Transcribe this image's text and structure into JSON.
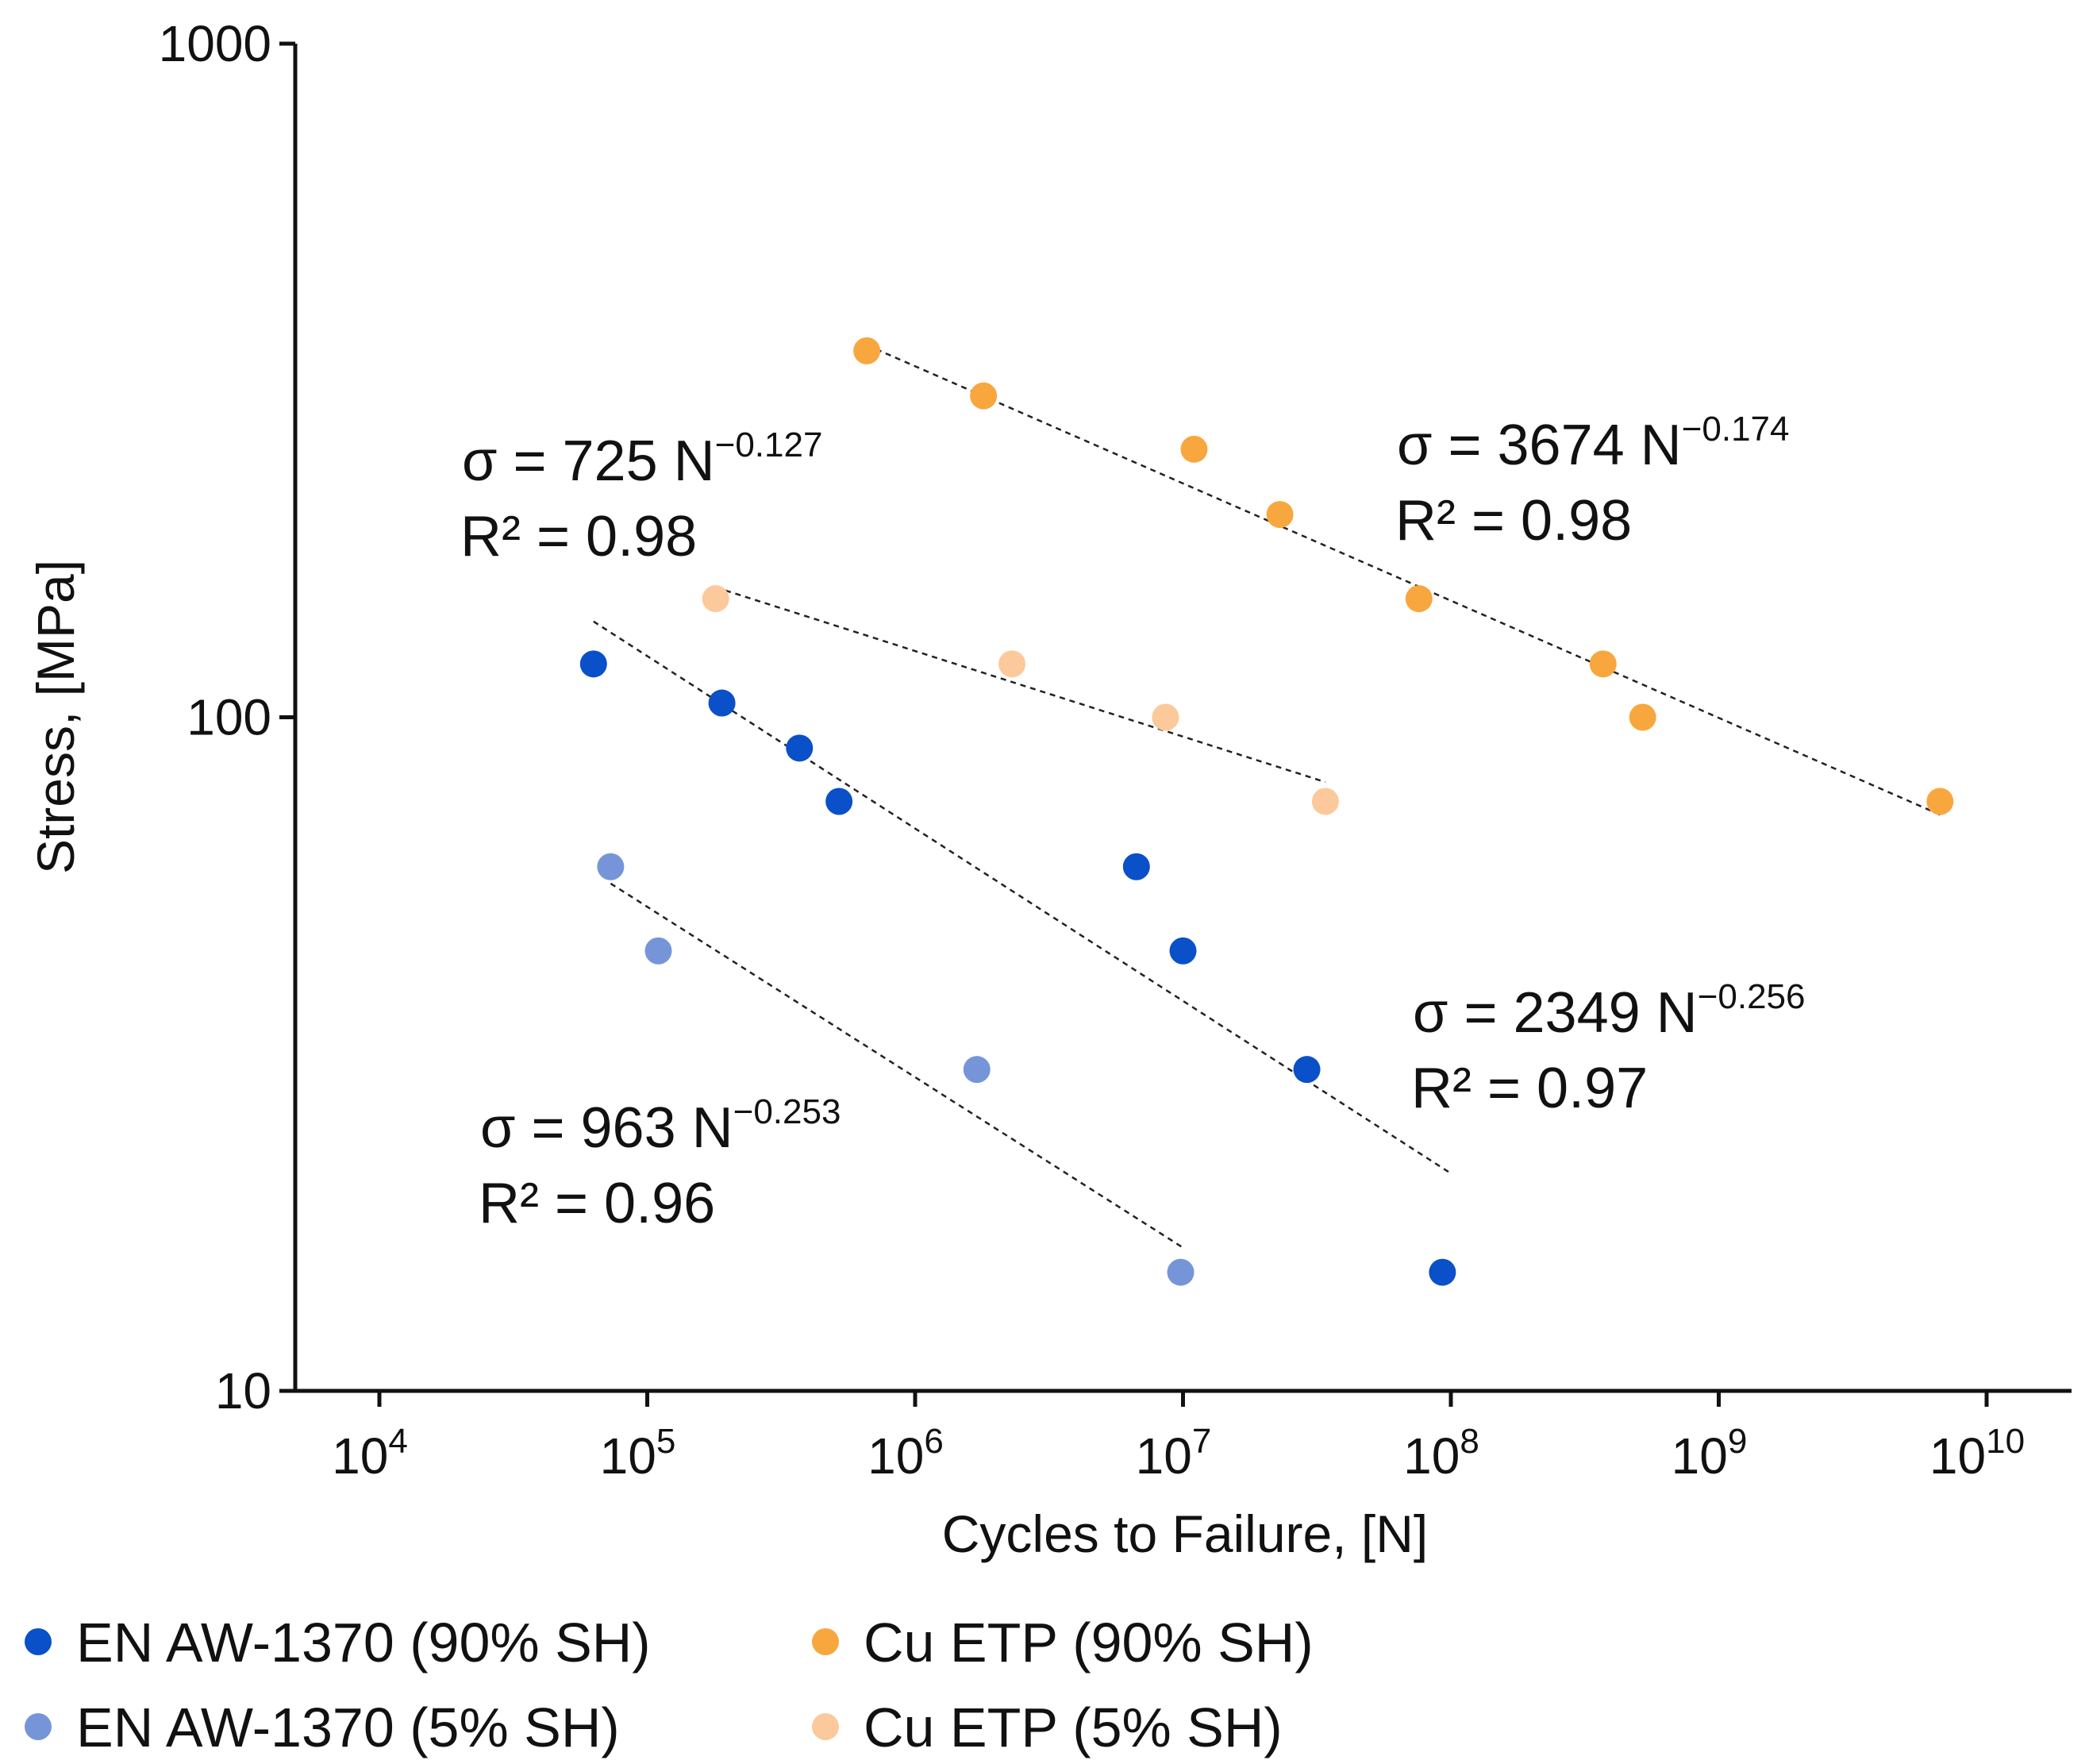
{
  "chart_data": {
    "type": "scatter",
    "xscale": "log",
    "yscale": "log",
    "xlabel": "Cycles to Failure, [N]",
    "ylabel": "Stress, [MPa]",
    "xlim": [
      5000,
      15000000000
    ],
    "ylim": [
      10,
      1000
    ],
    "x_ticks": [
      {
        "base": "10",
        "exp": "4"
      },
      {
        "base": "10",
        "exp": "5"
      },
      {
        "base": "10",
        "exp": "6"
      },
      {
        "base": "10",
        "exp": "7"
      },
      {
        "base": "10",
        "exp": "8"
      },
      {
        "base": "10",
        "exp": "9"
      },
      {
        "base": "10",
        "exp": "10"
      }
    ],
    "x_tick_values": [
      10000,
      100000,
      1000000,
      10000000,
      100000000,
      1000000000,
      10000000000
    ],
    "y_ticks": [
      "10",
      "100",
      "1000"
    ],
    "y_tick_values": [
      10,
      100,
      1000
    ],
    "series": [
      {
        "name": "EN AW-1370 (90% SH)",
        "color": "#0a50c8",
        "points": [
          [
            63000,
            120
          ],
          [
            190000,
            105
          ],
          [
            370000,
            90
          ],
          [
            520000,
            75
          ],
          [
            6700000,
            60
          ],
          [
            10000000,
            45
          ],
          [
            29000000,
            30
          ],
          [
            93000000,
            15
          ]
        ],
        "fit": {
          "label": "σ = 2349 N",
          "exponent": "−0.256",
          "r2": "R² = 0.97",
          "x_range": [
            63000,
            100000000
          ],
          "coef": 2349,
          "b": -0.256
        }
      },
      {
        "name": "EN AW-1370 (5% SH)",
        "color": "#7695d9",
        "points": [
          [
            73000,
            60
          ],
          [
            110000,
            45
          ],
          [
            1700000,
            30
          ],
          [
            9800000,
            15
          ]
        ],
        "fit": {
          "label": "σ = 963 N",
          "exponent": "−0.253",
          "r2": "R² = 0.96",
          "x_range": [
            73000,
            10000000
          ],
          "coef": 963,
          "b": -0.253
        }
      },
      {
        "name": "Cu ETP (90% SH)",
        "color": "#f8a73e",
        "points": [
          [
            660000,
            350
          ],
          [
            1800000,
            300
          ],
          [
            11000000,
            250
          ],
          [
            23000000,
            200
          ],
          [
            76000000,
            150
          ],
          [
            370000000,
            120
          ],
          [
            520000000,
            100
          ],
          [
            6700000000,
            75
          ]
        ],
        "fit": {
          "label": "σ = 3674 N",
          "exponent": "−0.174",
          "r2": "R² = 0.98",
          "x_range": [
            660000,
            6700000000
          ],
          "coef": 3674,
          "b": -0.174
        }
      },
      {
        "name": "Cu ETP (5% SH)",
        "color": "#fcc99c",
        "points": [
          [
            180000,
            150
          ],
          [
            2300000,
            120
          ],
          [
            8600000,
            100
          ],
          [
            34000000,
            75
          ]
        ],
        "fit": {
          "label": "σ = 725 N",
          "exponent": "−0.127",
          "r2": "R² = 0.98",
          "x_range": [
            180000,
            34000000
          ],
          "coef": 725,
          "b": -0.127
        }
      }
    ],
    "legend": {
      "position": "bottom",
      "columns": 2
    }
  }
}
